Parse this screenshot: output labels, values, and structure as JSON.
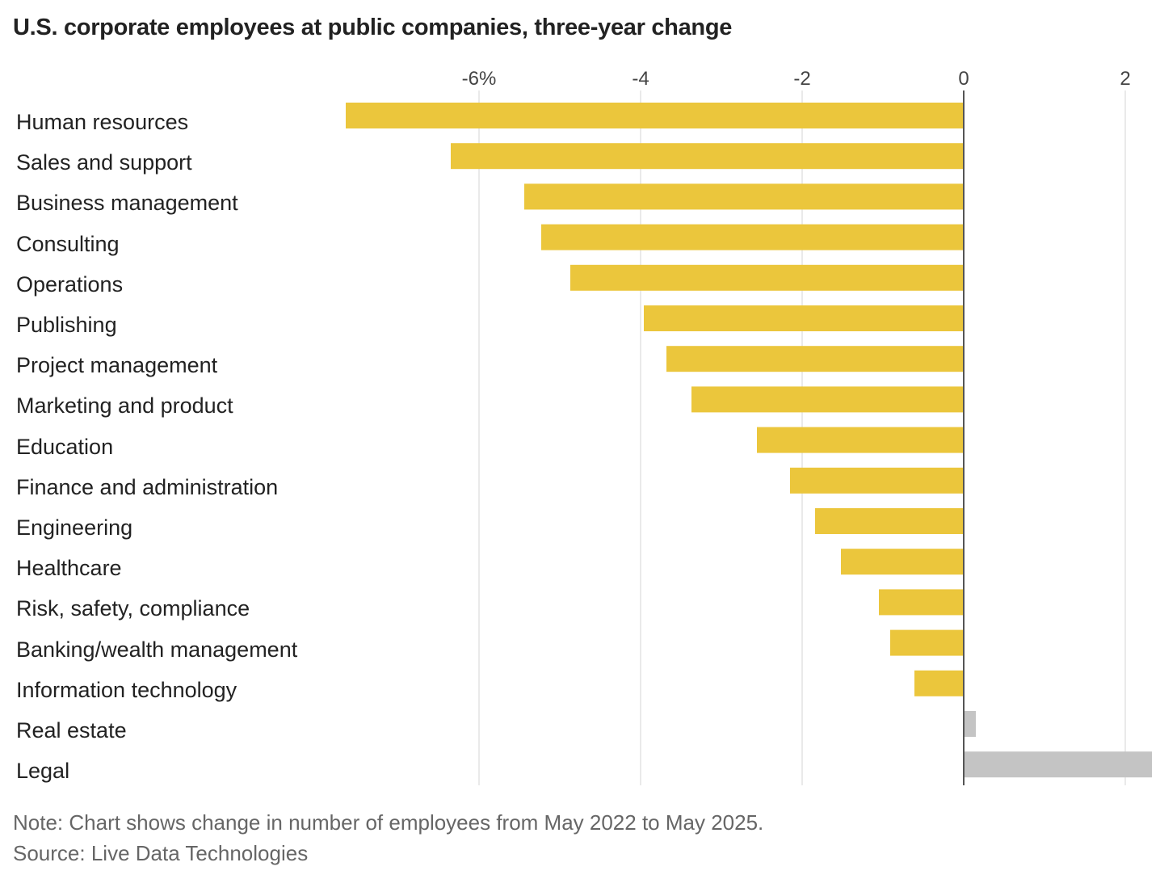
{
  "chart_data": {
    "type": "bar",
    "orientation": "horizontal",
    "title": "U.S. corporate employees at public companies, three-year change",
    "categories": [
      "Human resources",
      "Sales and support",
      "Business management",
      "Consulting",
      "Operations",
      "Publishing",
      "Project management",
      "Marketing and product",
      "Education",
      "Finance and administration",
      "Engineering",
      "Healthcare",
      "Risk, safety, compliance",
      "Banking/wealth management",
      "Information technology",
      "Real estate",
      "Legal"
    ],
    "values": [
      -7.65,
      -6.35,
      -5.44,
      -5.23,
      -4.87,
      -3.96,
      -3.68,
      -3.37,
      -2.56,
      -2.15,
      -1.84,
      -1.52,
      -1.05,
      -0.91,
      -0.61,
      0.15,
      2.33
    ],
    "xlim": [
      -7.65,
      2.35
    ],
    "ticks": [
      -6,
      -4,
      -2,
      0,
      2
    ],
    "tick_labels": [
      "-6%",
      "-4",
      "-2",
      "0",
      "2"
    ],
    "colors": {
      "negative": "#EBC63C",
      "positive": "#C4C4C4",
      "grid": "#E3E3E3",
      "zero": "#555555"
    },
    "grid": true,
    "note": "Note: Chart shows change in number of employees from May 2022 to May 2025.",
    "source": "Source: Live Data Technologies"
  }
}
